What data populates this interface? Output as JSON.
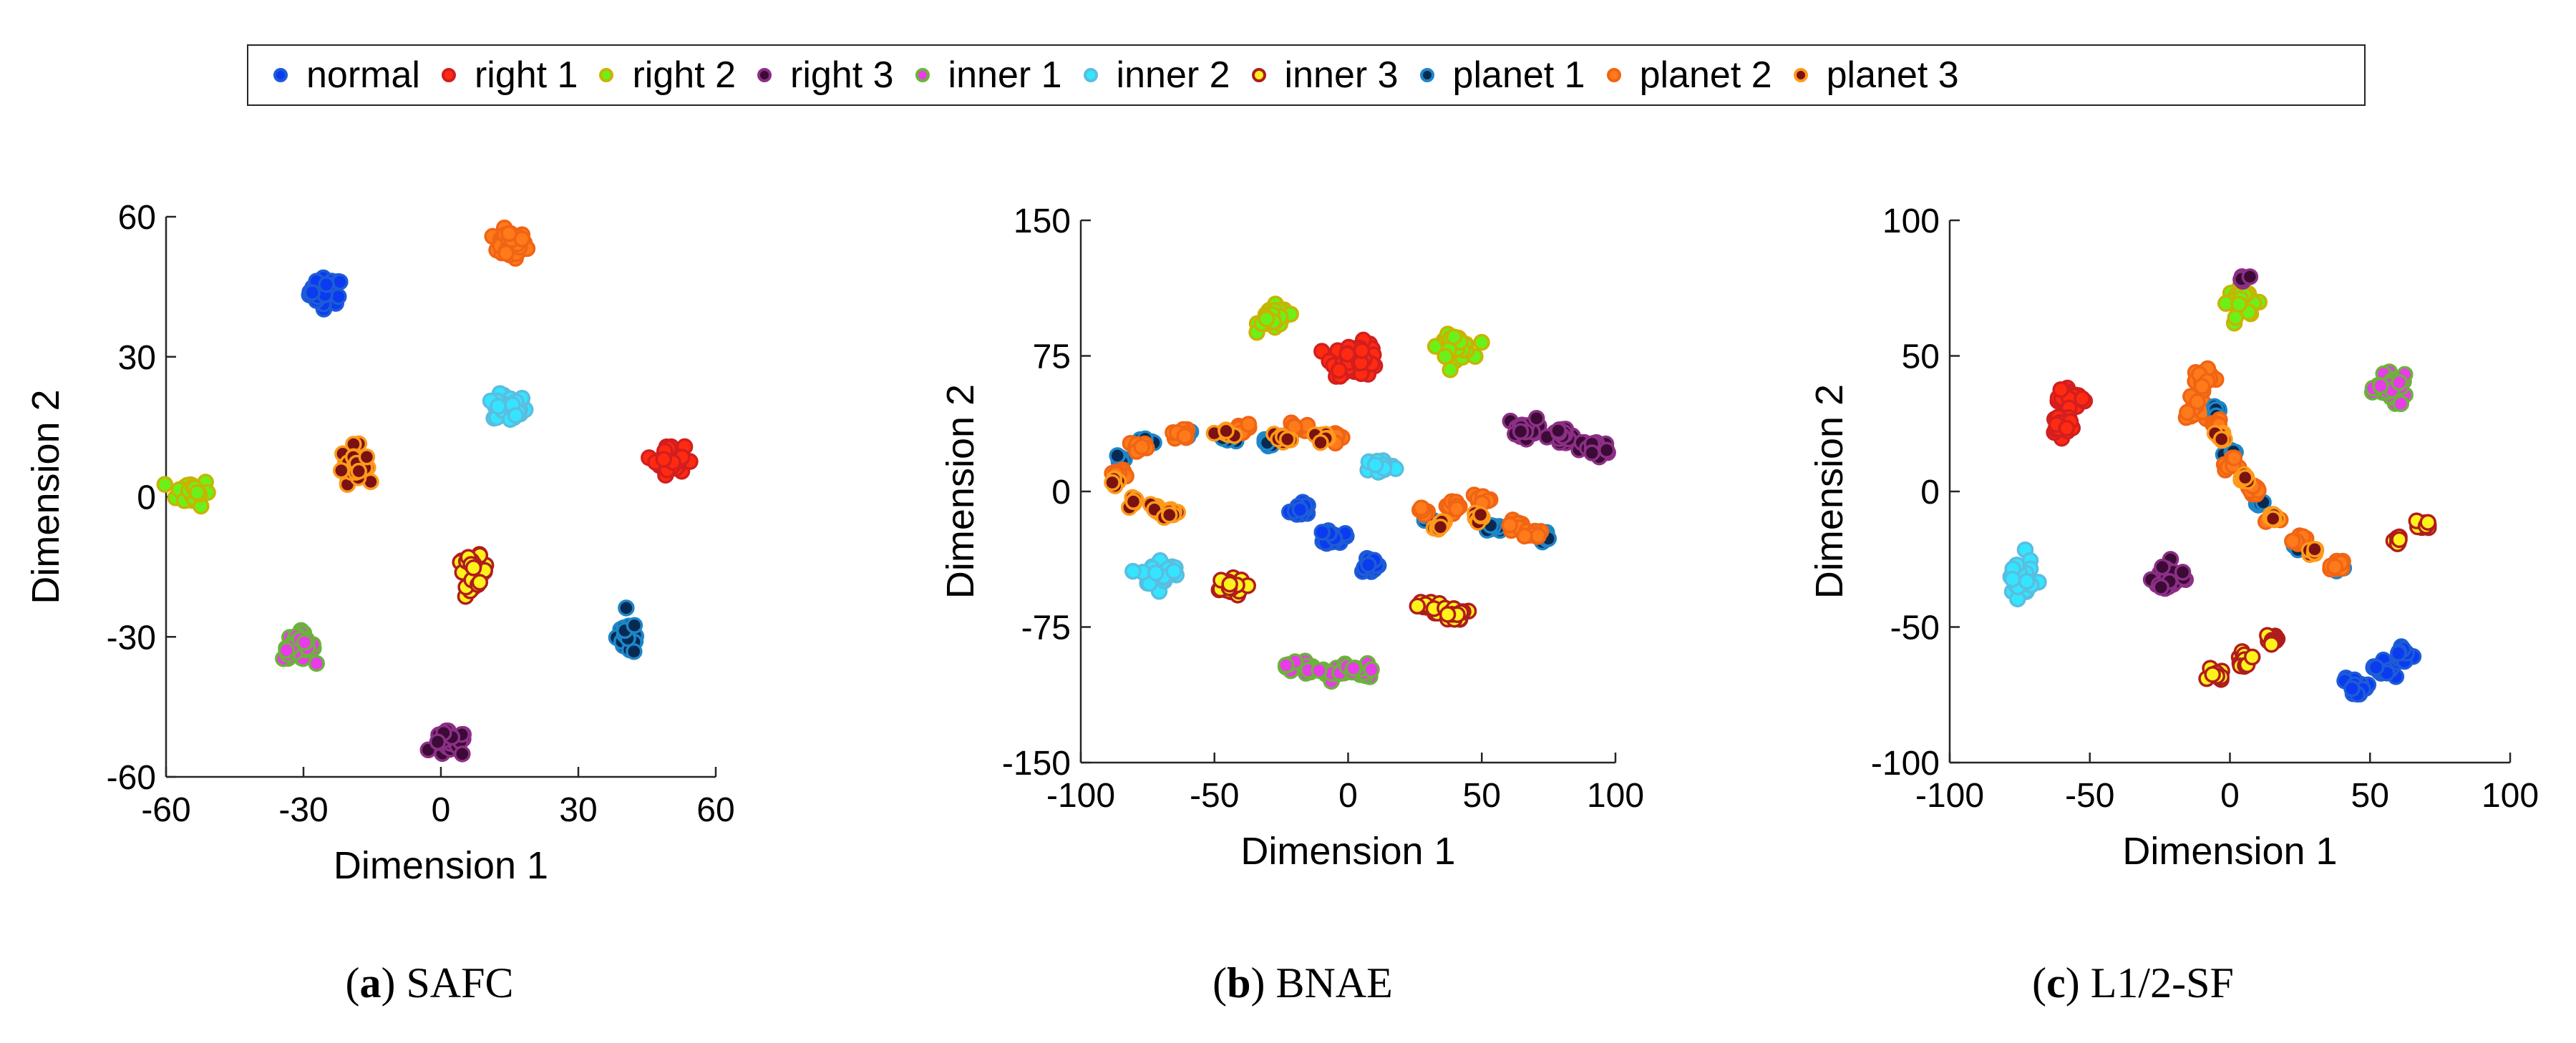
{
  "legend": [
    {
      "label": "normal",
      "fill": "#0a3bf0",
      "edge": "#1e5cd6"
    },
    {
      "label": "right 1",
      "fill": "#ff2a10",
      "edge": "#d21e1e"
    },
    {
      "label": "right 2",
      "fill": "#6cf01a",
      "edge": "#c8b400"
    },
    {
      "label": "right 3",
      "fill": "#3b0b36",
      "edge": "#8c2f86"
    },
    {
      "label": "inner 1",
      "fill": "#e83ce8",
      "edge": "#6bb33a"
    },
    {
      "label": "inner 2",
      "fill": "#35e4ff",
      "edge": "#5bbde0"
    },
    {
      "label": "inner 3",
      "fill": "#fff21c",
      "edge": "#b01c1c"
    },
    {
      "label": "planet 1",
      "fill": "#062a52",
      "edge": "#1e86c8"
    },
    {
      "label": "planet 2",
      "fill": "#ff7a1a",
      "edge": "#f06414"
    },
    {
      "label": "planet 3",
      "fill": "#7a1212",
      "edge": "#ff9a1a"
    }
  ],
  "chart_data": [
    {
      "type": "scatter",
      "caption_letter": "a",
      "caption_text": "SAFC",
      "xlabel": "Dimension 1",
      "ylabel": "Dimension 2",
      "xlim": [
        -60,
        60
      ],
      "ylim": [
        -60,
        60
      ],
      "xticks": [
        -60,
        -30,
        0,
        30,
        60
      ],
      "yticks": [
        -60,
        -30,
        0,
        30,
        60
      ],
      "clusters": [
        {
          "class": "normal",
          "points": [
            [
              -25,
              44
            ]
          ],
          "spread": [
            4,
            3.2
          ],
          "n": 45
        },
        {
          "class": "planet 2",
          "points": [
            [
              15,
              54
            ]
          ],
          "spread": [
            4,
            3.2
          ],
          "n": 45
        },
        {
          "class": "inner 2",
          "points": [
            [
              15,
              19
            ]
          ],
          "spread": [
            4,
            3.2
          ],
          "n": 45
        },
        {
          "class": "right 2",
          "points": [
            [
              -54,
              1
            ]
          ],
          "spread": [
            4,
            3.2
          ],
          "n": 45
        },
        {
          "class": "planet 3",
          "points": [
            [
              -19,
              7
            ]
          ],
          "spread": [
            3,
            4.2
          ],
          "n": 40
        },
        {
          "class": "right 1",
          "points": [
            [
              50,
              8
            ]
          ],
          "spread": [
            3.5,
            3.5
          ],
          "n": 40
        },
        {
          "class": "inner 3",
          "points": [
            [
              7,
              -16
            ]
          ],
          "spread": [
            3.5,
            3.5
          ],
          "n": 40
        },
        {
          "class": "inner 1",
          "points": [
            [
              -31,
              -32
            ]
          ],
          "spread": [
            3.8,
            3.2
          ],
          "n": 40
        },
        {
          "class": "planet 1",
          "points": [
            [
              41,
              -30
            ]
          ],
          "spread": [
            2.8,
            4.2
          ],
          "n": 40
        },
        {
          "class": "right 3",
          "points": [
            [
              2,
              -53
            ]
          ],
          "spread": [
            4,
            3
          ],
          "n": 40
        }
      ]
    },
    {
      "type": "scatter",
      "caption_letter": "b",
      "caption_text": "BNAE",
      "xlabel": "Dimension 1",
      "ylabel": "Dimension 2",
      "xlim": [
        -100,
        100
      ],
      "ylim": [
        -150,
        150
      ],
      "xticks": [
        -100,
        -50,
        0,
        50,
        100
      ],
      "yticks": [
        -150,
        -75,
        0,
        75,
        150
      ],
      "clusters": [
        {
          "class": "right 2",
          "points": [
            [
              -28,
              96
            ]
          ],
          "spread": [
            6,
            7
          ],
          "n": 40
        },
        {
          "class": "right 1",
          "points": [
            [
              3,
              73
            ]
          ],
          "spread": [
            10,
            10
          ],
          "n": 55
        },
        {
          "class": "right 2",
          "points": [
            [
              40,
              80
            ]
          ],
          "spread": [
            7,
            7
          ],
          "n": 40
        },
        {
          "class": "right 3",
          "points": [
            [
              65,
              35
            ],
            [
              80,
              30
            ],
            [
              92,
              24
            ]
          ],
          "spread": [
            6,
            6
          ],
          "n": 60
        },
        {
          "class": "inner 2",
          "points": [
            [
              12,
              14
            ]
          ],
          "spread": [
            6,
            5
          ],
          "n": 30
        },
        {
          "class": "inner 2",
          "points": [
            [
              -70,
              -45
            ]
          ],
          "spread": [
            8,
            8
          ],
          "n": 40
        },
        {
          "class": "normal",
          "points": [
            [
              -18,
              -10
            ],
            [
              -5,
              -25
            ],
            [
              8,
              -40
            ]
          ],
          "spread": [
            4,
            5
          ],
          "n": 50
        },
        {
          "class": "inner 3",
          "points": [
            [
              -45,
              -53
            ]
          ],
          "spread": [
            7,
            5
          ],
          "n": 35
        },
        {
          "class": "inner 3",
          "points": [
            [
              30,
              -64
            ],
            [
              40,
              -68
            ]
          ],
          "spread": [
            5,
            4
          ],
          "n": 35
        },
        {
          "class": "inner 1",
          "points": [
            [
              -18,
              -97
            ],
            [
              -5,
              -100
            ],
            [
              5,
              -100
            ]
          ],
          "spread": [
            6,
            5
          ],
          "n": 50
        },
        {
          "class": "planet 1",
          "points": [
            [
              -85,
              18
            ],
            [
              -75,
              27
            ],
            [
              -60,
              31
            ],
            [
              -45,
              29
            ],
            [
              -30,
              27
            ],
            [
              30,
              -15
            ],
            [
              55,
              -20
            ],
            [
              72,
              -25
            ]
          ],
          "spread": [
            3,
            2.5
          ],
          "n": 70
        },
        {
          "class": "planet 2",
          "points": [
            [
              -85,
              10
            ],
            [
              -78,
              25
            ],
            [
              -62,
              32
            ],
            [
              -40,
              35
            ],
            [
              -20,
              35
            ],
            [
              -5,
              30
            ],
            [
              28,
              -10
            ],
            [
              40,
              -8
            ],
            [
              50,
              -5
            ],
            [
              62,
              -18
            ],
            [
              70,
              -24
            ]
          ],
          "spread": [
            4,
            3
          ],
          "n": 110
        },
        {
          "class": "planet 3",
          "points": [
            [
              -86,
              5
            ],
            [
              -80,
              -5
            ],
            [
              -72,
              -10
            ],
            [
              -65,
              -12
            ],
            [
              -45,
              32
            ],
            [
              -25,
              30
            ],
            [
              -10,
              30
            ],
            [
              35,
              -18
            ],
            [
              48,
              -15
            ]
          ],
          "spread": [
            3,
            3
          ],
          "n": 70
        }
      ]
    },
    {
      "type": "scatter",
      "caption_letter": "c",
      "caption_text": "L1/2-SF",
      "xlabel": "Dimension 1",
      "ylabel": "Dimension 2",
      "xlim": [
        -100,
        100
      ],
      "ylim": [
        -100,
        100
      ],
      "xticks": [
        -100,
        -50,
        0,
        50,
        100
      ],
      "yticks": [
        -100,
        -50,
        0,
        50,
        100
      ],
      "clusters": [
        {
          "class": "right 2",
          "points": [
            [
              5,
              70
            ]
          ],
          "spread": [
            6,
            6
          ],
          "n": 40
        },
        {
          "class": "right 3",
          "points": [
            [
              5,
              78
            ]
          ],
          "spread": [
            3,
            2
          ],
          "n": 6
        },
        {
          "class": "planet 2",
          "points": [
            [
              -10,
              42
            ],
            [
              -12,
              30
            ]
          ],
          "spread": [
            4,
            5
          ],
          "n": 40
        },
        {
          "class": "right 1",
          "points": [
            [
              -58,
              35
            ],
            [
              -60,
              25
            ]
          ],
          "spread": [
            5,
            5
          ],
          "n": 50
        },
        {
          "class": "inner 1",
          "points": [
            [
              58,
              38
            ]
          ],
          "spread": [
            6,
            5
          ],
          "n": 40
        },
        {
          "class": "inner 2",
          "points": [
            [
              -75,
              -32
            ]
          ],
          "spread": [
            5,
            8
          ],
          "n": 40
        },
        {
          "class": "right 3",
          "points": [
            [
              -22,
              -32
            ]
          ],
          "spread": [
            6,
            6
          ],
          "n": 40
        },
        {
          "class": "inner 3",
          "points": [
            [
              -5,
              -68
            ],
            [
              5,
              -62
            ],
            [
              15,
              -55
            ]
          ],
          "spread": [
            3,
            2.5
          ],
          "n": 35
        },
        {
          "class": "inner 3",
          "points": [
            [
              60,
              -18
            ],
            [
              70,
              -12
            ]
          ],
          "spread": [
            2.5,
            2
          ],
          "n": 18
        },
        {
          "class": "normal",
          "points": [
            [
              45,
              -72
            ],
            [
              55,
              -65
            ],
            [
              62,
              -60
            ]
          ],
          "spread": [
            5,
            4
          ],
          "n": 45
        },
        {
          "class": "planet 1",
          "points": [
            [
              -5,
              30
            ],
            [
              0,
              15
            ],
            [
              10,
              -5
            ],
            [
              25,
              -20
            ],
            [
              38,
              -28
            ]
          ],
          "spread": [
            2,
            2
          ],
          "n": 40
        },
        {
          "class": "planet 2",
          "points": [
            [
              -5,
              25
            ],
            [
              0,
              10
            ],
            [
              8,
              0
            ],
            [
              15,
              -10
            ],
            [
              25,
              -18
            ],
            [
              38,
              -28
            ]
          ],
          "spread": [
            2.5,
            2.5
          ],
          "n": 60
        },
        {
          "class": "planet 3",
          "points": [
            [
              -3,
              20
            ],
            [
              5,
              5
            ],
            [
              15,
              -10
            ],
            [
              30,
              -22
            ]
          ],
          "spread": [
            2,
            2
          ],
          "n": 40
        }
      ]
    }
  ]
}
